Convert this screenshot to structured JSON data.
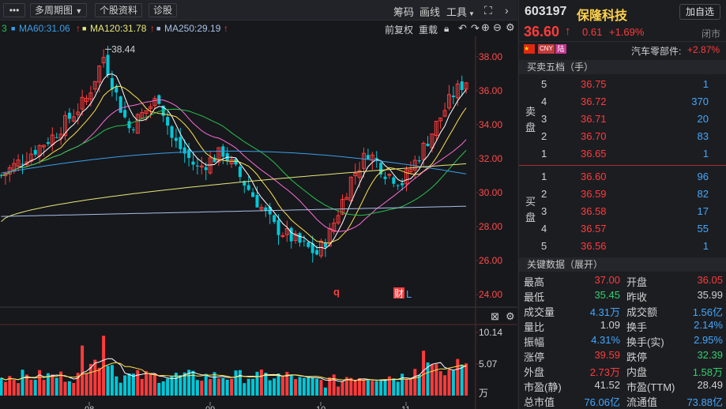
{
  "toolbar": {
    "menu_icon": "more-dots-icon",
    "period_label": "多周期图",
    "stock_info_label": "个股资料",
    "diagnose_label": "诊股",
    "chips_label": "筹码",
    "draw_label": "画线",
    "tools_label": "工具",
    "fullscreen_icon": "expand-icon",
    "collapse_icon": "chevron-right-icon"
  },
  "ma": {
    "partial": "3",
    "ma60": "MA60:31.06",
    "ma120": "MA120:31.78",
    "ma250": "MA250:29.19",
    "arrow": "↑",
    "adjust_label": "前复权",
    "overlay_label": "重载"
  },
  "chart_data": {
    "type": "candlestick",
    "y_ticks": [
      "38.00",
      "36.00",
      "34.00",
      "32.00",
      "30.00",
      "28.00",
      "26.00",
      "24.00"
    ],
    "ylim": [
      23.4,
      39.2
    ],
    "max_annotation": "38.44",
    "markers": [
      "q",
      "财",
      "L"
    ],
    "colors": {
      "up": "#ff3b3b",
      "down": "#00c8d8",
      "ma5": "#ffffff",
      "ma10": "#ffe14d",
      "ma20": "#ff6bd5",
      "ma30": "#27c24c",
      "ma60": "#3a9ee8",
      "ma120": "#e8e87a",
      "ma250": "#a8c0e8"
    },
    "volume": {
      "ticks": [
        "10.14",
        "5.07",
        "万"
      ],
      "x_labels": [
        "08",
        "09",
        "10",
        "11"
      ]
    }
  },
  "header": {
    "code": "603197",
    "name": "保隆科技",
    "add_self_label": "加自选",
    "price": "36.60",
    "arrow": "↑",
    "change": "0.61",
    "change_pct": "+1.69%",
    "status": "闭市",
    "tags": [
      "CNY",
      "陆"
    ],
    "sector_label": "汽车零部件:",
    "sector_pct": "+2.87%"
  },
  "orderbook": {
    "title": "买卖五档（手）",
    "sell_label": "卖盘",
    "buy_label": "买盘",
    "sells": [
      {
        "level": "5",
        "price": "36.75",
        "vol": "1"
      },
      {
        "level": "4",
        "price": "36.72",
        "vol": "370"
      },
      {
        "level": "3",
        "price": "36.71",
        "vol": "20"
      },
      {
        "level": "2",
        "price": "36.70",
        "vol": "83"
      },
      {
        "level": "1",
        "price": "36.65",
        "vol": "1"
      }
    ],
    "buys": [
      {
        "level": "1",
        "price": "36.60",
        "vol": "96"
      },
      {
        "level": "2",
        "price": "36.59",
        "vol": "82"
      },
      {
        "level": "3",
        "price": "36.58",
        "vol": "17"
      },
      {
        "level": "4",
        "price": "36.57",
        "vol": "55"
      },
      {
        "level": "5",
        "price": "36.56",
        "vol": "1"
      }
    ]
  },
  "keydata": {
    "title": "关键数据（展开）",
    "rows": [
      {
        "l1": "最高",
        "v1": "37.00",
        "c1": "up",
        "l2": "开盘",
        "v2": "36.05",
        "c2": "up"
      },
      {
        "l1": "最低",
        "v1": "35.45",
        "c1": "dn",
        "l2": "昨收",
        "v2": "35.99",
        "c2": "wh"
      },
      {
        "l1": "成交量",
        "v1": "4.31万",
        "c1": "bl",
        "l2": "成交额",
        "v2": "1.56亿",
        "c2": "bl"
      },
      {
        "l1": "量比",
        "v1": "1.09",
        "c1": "wh",
        "l2": "换手",
        "v2": "2.14%",
        "c2": "bl"
      },
      {
        "l1": "振幅",
        "v1": "4.31%",
        "c1": "bl",
        "l2": "换手(实)",
        "v2": "2.95%",
        "c2": "bl"
      },
      {
        "l1": "涨停",
        "v1": "39.59",
        "c1": "up",
        "l2": "跌停",
        "v2": "32.39",
        "c2": "dn"
      },
      {
        "l1": "外盘",
        "v1": "2.73万",
        "c1": "up",
        "l2": "内盘",
        "v2": "1.58万",
        "c2": "dn"
      },
      {
        "l1": "市盈(静)",
        "v1": "41.52",
        "c1": "wh",
        "l2": "市盈(TTM)",
        "v2": "28.49",
        "c2": "wh"
      },
      {
        "l1": "总市值",
        "v1": "76.06亿",
        "c1": "bl",
        "l2": "流通值",
        "v2": "73.88亿",
        "c2": "bl"
      }
    ]
  }
}
